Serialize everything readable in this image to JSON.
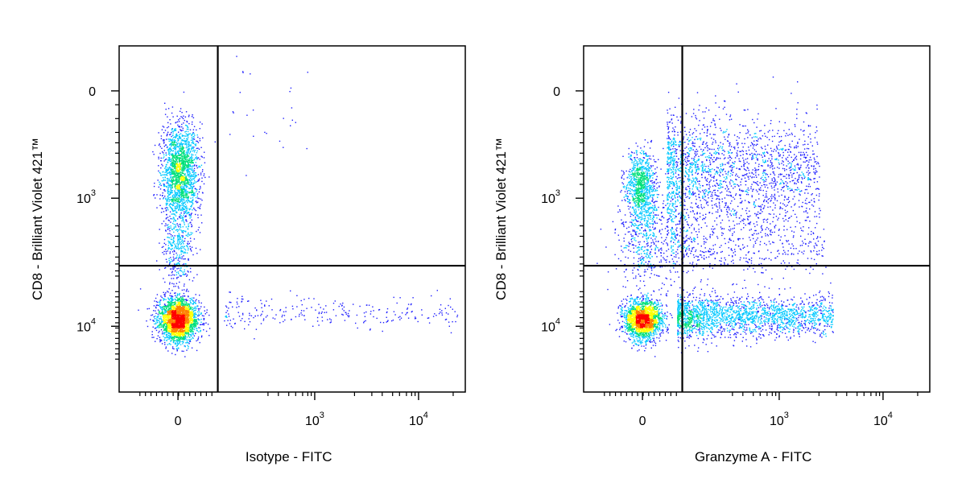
{
  "chart_data": [
    {
      "type": "scatter",
      "xlabel": "Isotype - FITC",
      "ylabel": "CD8 - Brilliant Violet 421™",
      "x_scale": "biexponential",
      "y_scale": "biexponential",
      "x_tick_labels": [
        {
          "base": "0",
          "exp": ""
        },
        {
          "base": "10",
          "exp": "3"
        },
        {
          "base": "10",
          "exp": "4"
        }
      ],
      "y_tick_labels": [
        {
          "base": "10",
          "exp": "4"
        },
        {
          "base": "10",
          "exp": "3"
        },
        {
          "base": "0",
          "exp": ""
        }
      ],
      "x_ticks": [
        0,
        1000,
        10000
      ],
      "y_ticks": [
        10000,
        1000,
        0
      ],
      "xlim": [
        -300,
        20000
      ],
      "ylim": [
        -300,
        20000
      ],
      "quadrant_gate": {
        "x": 50,
        "y": 150
      },
      "populations": [
        {
          "name": "CD8+ FITC-",
          "x_center": 0,
          "y_center": 1400,
          "relative_density": "high"
        },
        {
          "name": "CD8- FITC-",
          "x_center": 0,
          "y_center": 0,
          "relative_density": "highest"
        },
        {
          "name": "CD8- FITC+ (sparse)",
          "x_range": [
            100,
            10000
          ],
          "y_center": 0,
          "relative_density": "very low"
        },
        {
          "name": "CD8+ FITC+ (sparse)",
          "x_range": [
            100,
            600
          ],
          "y_range": [
            1500,
            15000
          ],
          "relative_density": "very low"
        }
      ],
      "color_scale": [
        "#1f1fff",
        "#00c8ff",
        "#00e07a",
        "#ffff00",
        "#ff8000",
        "#ff0000"
      ],
      "grid": false
    },
    {
      "type": "scatter",
      "xlabel": "Granzyme A - FITC",
      "ylabel": "CD8 - Brilliant Violet 421™",
      "x_scale": "biexponential",
      "y_scale": "biexponential",
      "x_tick_labels": [
        {
          "base": "0",
          "exp": ""
        },
        {
          "base": "10",
          "exp": "3"
        },
        {
          "base": "10",
          "exp": "4"
        }
      ],
      "y_tick_labels": [
        {
          "base": "10",
          "exp": "4"
        },
        {
          "base": "10",
          "exp": "3"
        },
        {
          "base": "0",
          "exp": ""
        }
      ],
      "x_ticks": [
        0,
        1000,
        10000
      ],
      "y_ticks": [
        10000,
        1000,
        0
      ],
      "xlim": [
        -300,
        20000
      ],
      "ylim": [
        -300,
        20000
      ],
      "quadrant_gate": {
        "x": 50,
        "y": 150
      },
      "populations": [
        {
          "name": "CD8+ GzmA-",
          "x_center": 0,
          "y_center": 1100,
          "relative_density": "medium"
        },
        {
          "name": "CD8+ GzmA+",
          "x_range": [
            100,
            1500
          ],
          "y_range": [
            300,
            5000
          ],
          "relative_density": "medium"
        },
        {
          "name": "CD8- GzmA-",
          "x_center": 0,
          "y_center": 0,
          "relative_density": "highest"
        },
        {
          "name": "CD8- GzmA+",
          "x_range": [
            100,
            2500
          ],
          "y_center": 0,
          "relative_density": "medium-high"
        }
      ],
      "color_scale": [
        "#1f1fff",
        "#00c8ff",
        "#00e07a",
        "#ffff00",
        "#ff8000",
        "#ff0000"
      ],
      "grid": false
    }
  ]
}
